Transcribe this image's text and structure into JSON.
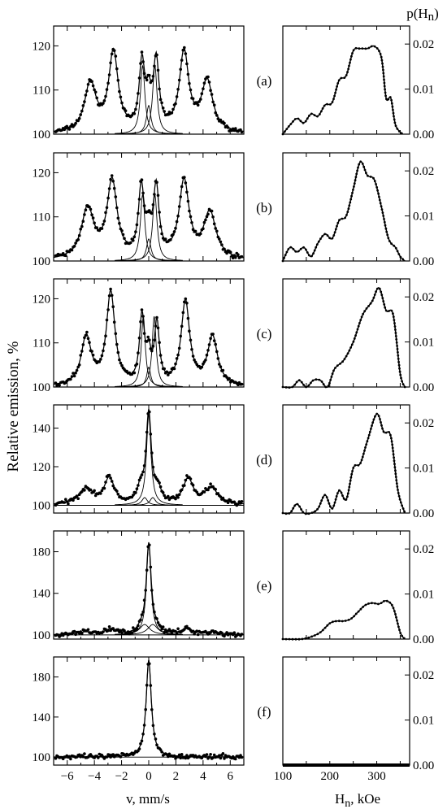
{
  "figure": {
    "y_axis_label": "Relative emission, %",
    "x_axis_label": "v, mm/s",
    "right_axis_title": "p(H",
    "right_axis_title_sub": "n",
    "right_axis_title_end": ")",
    "h_axis_label": "H",
    "h_axis_label_sub": "n",
    "h_axis_label_end": ", kOe"
  },
  "chart_data": [
    {
      "panel": "(a)",
      "type": "scatter",
      "xlim": [
        -7,
        7
      ],
      "ylim": [
        100,
        124.5
      ],
      "x_ticks": [
        -6,
        -4,
        -2,
        0,
        2,
        4,
        6
      ],
      "y_ticks": [
        100,
        110,
        120
      ],
      "peaks": [
        {
          "pos": -4.3,
          "amp": 11.2,
          "w": 0.5
        },
        {
          "pos": -2.6,
          "amp": 18.0,
          "w": 0.42
        },
        {
          "pos": -0.5,
          "amp": 15.0,
          "w": 0.25
        },
        {
          "pos": 0.0,
          "amp": 6.5,
          "w": 0.22
        },
        {
          "pos": 0.55,
          "amp": 15.5,
          "w": 0.25
        },
        {
          "pos": 2.6,
          "amp": 18.0,
          "w": 0.42
        },
        {
          "pos": 4.3,
          "amp": 11.5,
          "w": 0.5
        }
      ],
      "components": [
        {
          "pos": -0.45,
          "amp": 15.5,
          "w": 0.2
        },
        {
          "pos": 0.0,
          "amp": 6.5,
          "w": 0.2
        },
        {
          "pos": 0.45,
          "amp": 15.5,
          "w": 0.2
        }
      ],
      "p_Hn": {
        "xlim": [
          100,
          370
        ],
        "ylim": [
          0,
          0.024
        ],
        "y_ticks": [
          0.0,
          0.01,
          0.02
        ],
        "H": [
          100,
          115,
          130,
          145,
          160,
          175,
          190,
          205,
          220,
          235,
          250,
          265,
          280,
          295,
          310,
          320,
          330,
          340,
          355
        ],
        "p": [
          0.0,
          0.002,
          0.0035,
          0.0025,
          0.0045,
          0.004,
          0.0065,
          0.007,
          0.012,
          0.013,
          0.0185,
          0.019,
          0.019,
          0.0195,
          0.017,
          0.008,
          0.008,
          0.002,
          0.0
        ]
      }
    },
    {
      "panel": "(b)",
      "type": "scatter",
      "xlim": [
        -7,
        7
      ],
      "ylim": [
        100,
        124.5
      ],
      "x_ticks": [
        -6,
        -4,
        -2,
        0,
        2,
        4,
        6
      ],
      "y_ticks": [
        100,
        110,
        120
      ],
      "peaks": [
        {
          "pos": -4.5,
          "amp": 11.5,
          "w": 0.55
        },
        {
          "pos": -2.7,
          "amp": 17.5,
          "w": 0.45
        },
        {
          "pos": -0.55,
          "amp": 15.5,
          "w": 0.25
        },
        {
          "pos": 0.0,
          "amp": 5.0,
          "w": 0.22
        },
        {
          "pos": 0.55,
          "amp": 15.5,
          "w": 0.25
        },
        {
          "pos": 2.6,
          "amp": 17.5,
          "w": 0.45
        },
        {
          "pos": 4.5,
          "amp": 10.5,
          "w": 0.55
        }
      ],
      "components": [
        {
          "pos": -0.45,
          "amp": 15.0,
          "w": 0.2
        },
        {
          "pos": 0.0,
          "amp": 5.0,
          "w": 0.2
        },
        {
          "pos": 0.45,
          "amp": 15.0,
          "w": 0.2
        }
      ],
      "p_Hn": {
        "xlim": [
          100,
          370
        ],
        "ylim": [
          0,
          0.024
        ],
        "y_ticks": [
          0.0,
          0.01,
          0.02
        ],
        "H": [
          100,
          115,
          130,
          145,
          160,
          175,
          190,
          205,
          220,
          235,
          250,
          265,
          280,
          295,
          310,
          325,
          340,
          350,
          360
        ],
        "p": [
          0.0,
          0.003,
          0.002,
          0.003,
          0.001,
          0.004,
          0.006,
          0.005,
          0.009,
          0.01,
          0.016,
          0.022,
          0.019,
          0.018,
          0.012,
          0.005,
          0.003,
          0.001,
          0.0
        ]
      }
    },
    {
      "panel": "(c)",
      "type": "scatter",
      "xlim": [
        -7,
        7
      ],
      "ylim": [
        100,
        124.5
      ],
      "x_ticks": [
        -6,
        -4,
        -2,
        0,
        2,
        4,
        6
      ],
      "y_ticks": [
        100,
        110,
        120
      ],
      "peaks": [
        {
          "pos": -4.6,
          "amp": 11.0,
          "w": 0.45
        },
        {
          "pos": -2.8,
          "amp": 21.0,
          "w": 0.38
        },
        {
          "pos": -0.5,
          "amp": 15.0,
          "w": 0.22
        },
        {
          "pos": 0.0,
          "amp": 6.0,
          "w": 0.2
        },
        {
          "pos": 0.6,
          "amp": 13.5,
          "w": 0.22
        },
        {
          "pos": 2.7,
          "amp": 19.0,
          "w": 0.38
        },
        {
          "pos": 4.7,
          "amp": 11.0,
          "w": 0.45
        }
      ],
      "components": [
        {
          "pos": -0.4,
          "amp": 16.0,
          "w": 0.18
        },
        {
          "pos": 0.0,
          "amp": 4.5,
          "w": 0.18
        },
        {
          "pos": 0.4,
          "amp": 16.0,
          "w": 0.18
        }
      ],
      "p_Hn": {
        "xlim": [
          100,
          370
        ],
        "ylim": [
          0,
          0.024
        ],
        "y_ticks": [
          0.0,
          0.01,
          0.02
        ],
        "H": [
          100,
          120,
          135,
          150,
          165,
          180,
          195,
          210,
          230,
          250,
          270,
          290,
          305,
          320,
          335,
          350,
          360
        ],
        "p": [
          0.0,
          0.0,
          0.0015,
          0.0,
          0.0015,
          0.0015,
          0.0,
          0.004,
          0.006,
          0.01,
          0.016,
          0.019,
          0.022,
          0.017,
          0.016,
          0.003,
          0.0
        ]
      }
    },
    {
      "panel": "(d)",
      "type": "scatter",
      "xlim": [
        -7,
        7
      ],
      "ylim": [
        96,
        152
      ],
      "x_ticks": [
        -6,
        -4,
        -2,
        0,
        2,
        4,
        6
      ],
      "y_ticks": [
        100,
        120,
        140
      ],
      "peaks": [
        {
          "pos": -4.6,
          "amp": 8.5,
          "w": 0.6
        },
        {
          "pos": -2.9,
          "amp": 13.5,
          "w": 0.45
        },
        {
          "pos": -0.6,
          "amp": 8.0,
          "w": 0.25
        },
        {
          "pos": 0.0,
          "amp": 47.0,
          "w": 0.23
        },
        {
          "pos": 0.7,
          "amp": 7.0,
          "w": 0.25
        },
        {
          "pos": 2.9,
          "amp": 13.0,
          "w": 0.45
        },
        {
          "pos": 4.6,
          "amp": 8.5,
          "w": 0.6
        }
      ],
      "components": [
        {
          "pos": -0.3,
          "amp": 4.0,
          "w": 0.25
        },
        {
          "pos": 0.0,
          "amp": 47.0,
          "w": 0.2
        },
        {
          "pos": 0.3,
          "amp": 4.0,
          "w": 0.25
        }
      ],
      "p_Hn": {
        "xlim": [
          100,
          370
        ],
        "ylim": [
          0,
          0.024
        ],
        "y_ticks": [
          0.0,
          0.01,
          0.02
        ],
        "H": [
          100,
          115,
          130,
          145,
          160,
          175,
          190,
          205,
          220,
          235,
          250,
          265,
          280,
          300,
          315,
          330,
          345,
          360
        ],
        "p": [
          0.0,
          0.0,
          0.002,
          0.0,
          0.0,
          0.001,
          0.004,
          0.001,
          0.005,
          0.003,
          0.01,
          0.011,
          0.016,
          0.022,
          0.018,
          0.017,
          0.005,
          0.0
        ]
      }
    },
    {
      "panel": "(e)",
      "type": "scatter",
      "xlim": [
        -7,
        7
      ],
      "ylim": [
        96,
        200
      ],
      "x_ticks": [
        -6,
        -4,
        -2,
        0,
        2,
        4,
        6
      ],
      "y_ticks": [
        100,
        140,
        180
      ],
      "peaks": [
        {
          "pos": -4.6,
          "amp": 2.5,
          "w": 0.7
        },
        {
          "pos": -2.8,
          "amp": 5.0,
          "w": 0.5
        },
        {
          "pos": -0.6,
          "amp": 4.0,
          "w": 0.3
        },
        {
          "pos": 0.0,
          "amp": 87.0,
          "w": 0.22
        },
        {
          "pos": 0.6,
          "amp": 4.0,
          "w": 0.3
        },
        {
          "pos": 2.8,
          "amp": 5.0,
          "w": 0.5
        },
        {
          "pos": 4.6,
          "amp": 2.5,
          "w": 0.7
        }
      ],
      "components": [
        {
          "pos": -0.3,
          "amp": 10.0,
          "w": 0.45
        },
        {
          "pos": 0.0,
          "amp": 87.0,
          "w": 0.2
        },
        {
          "pos": 0.3,
          "amp": 10.0,
          "w": 0.45
        }
      ],
      "p_Hn": {
        "xlim": [
          100,
          370
        ],
        "ylim": [
          0,
          0.024
        ],
        "y_ticks": [
          0.0,
          0.01,
          0.02
        ],
        "H": [
          100,
          140,
          160,
          180,
          200,
          215,
          230,
          245,
          260,
          275,
          290,
          305,
          320,
          335,
          350,
          360
        ],
        "p": [
          0.0,
          0.0,
          0.0005,
          0.0015,
          0.0035,
          0.004,
          0.004,
          0.0045,
          0.006,
          0.0075,
          0.008,
          0.0078,
          0.0085,
          0.007,
          0.0015,
          0.0
        ]
      }
    },
    {
      "panel": "(f)",
      "type": "scatter",
      "xlim": [
        -7,
        7
      ],
      "ylim": [
        92,
        200
      ],
      "x_ticks": [
        -6,
        -4,
        -2,
        0,
        2,
        4,
        6
      ],
      "y_ticks": [
        100,
        140,
        180
      ],
      "x_tick_labels": [
        "−6",
        "−4",
        "−2",
        "0",
        "2",
        "4",
        "6"
      ],
      "peaks": [
        {
          "pos": 0.0,
          "amp": 97.0,
          "w": 0.23
        }
      ],
      "components": [
        {
          "pos": 0.0,
          "amp": 97.0,
          "w": 0.23
        }
      ],
      "p_Hn": {
        "xlim": [
          100,
          370
        ],
        "ylim": [
          0,
          0.024
        ],
        "y_ticks": [
          0.0,
          0.01,
          0.02
        ],
        "x_ticks": [
          100,
          200,
          300
        ],
        "H": [
          100,
          370
        ],
        "p": [
          0.0,
          0.0
        ]
      }
    }
  ]
}
